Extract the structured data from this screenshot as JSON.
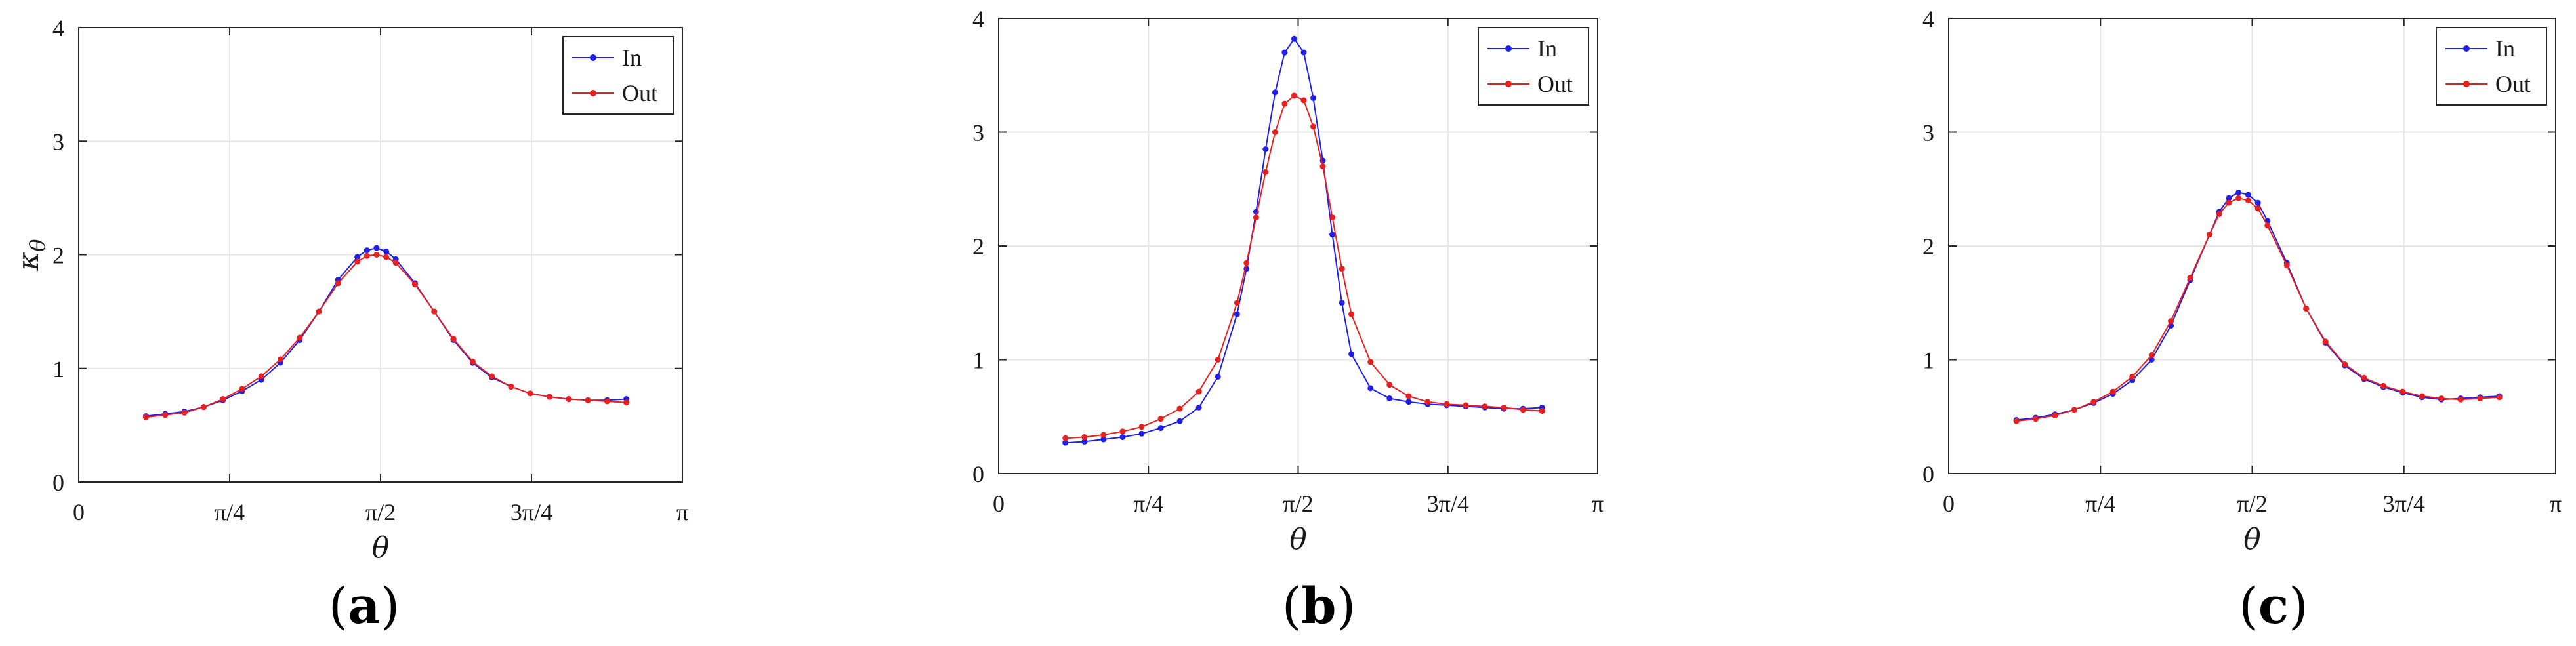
{
  "chart_data": [
    {
      "type": "line",
      "panel_label": "a",
      "xlabel": "θ",
      "ylabel": "κ",
      "ylabel_sub": "θ",
      "xlim": [
        0,
        3.14159
      ],
      "ylim": [
        0,
        4
      ],
      "xticks": [
        0,
        0.7854,
        1.5708,
        2.3562,
        3.14159
      ],
      "xtick_labels": [
        "0",
        "π/4",
        "π/2",
        "3π/4",
        "π"
      ],
      "yticks": [
        0,
        1,
        2,
        3,
        4
      ],
      "ytick_labels": [
        "0",
        "1",
        "2",
        "3",
        "4"
      ],
      "grid": true,
      "legend_position": "top-right",
      "series": [
        {
          "name": "In",
          "color": "#1f1fe6",
          "x": [
            0.35,
            0.45,
            0.55,
            0.65,
            0.75,
            0.85,
            0.95,
            1.05,
            1.15,
            1.25,
            1.35,
            1.45,
            1.5,
            1.55,
            1.6,
            1.65,
            1.75,
            1.85,
            1.95,
            2.05,
            2.15,
            2.25,
            2.35,
            2.45,
            2.55,
            2.65,
            2.75,
            2.85
          ],
          "y": [
            0.58,
            0.6,
            0.62,
            0.66,
            0.72,
            0.8,
            0.9,
            1.05,
            1.25,
            1.5,
            1.78,
            1.98,
            2.04,
            2.06,
            2.03,
            1.96,
            1.75,
            1.5,
            1.25,
            1.05,
            0.92,
            0.84,
            0.78,
            0.75,
            0.73,
            0.72,
            0.72,
            0.73
          ]
        },
        {
          "name": "Out",
          "color": "#e61f1f",
          "x": [
            0.35,
            0.45,
            0.55,
            0.65,
            0.75,
            0.85,
            0.95,
            1.05,
            1.15,
            1.25,
            1.35,
            1.45,
            1.5,
            1.55,
            1.6,
            1.65,
            1.75,
            1.85,
            1.95,
            2.05,
            2.15,
            2.25,
            2.35,
            2.45,
            2.55,
            2.65,
            2.75,
            2.85
          ],
          "y": [
            0.57,
            0.59,
            0.61,
            0.66,
            0.73,
            0.82,
            0.93,
            1.08,
            1.27,
            1.5,
            1.75,
            1.94,
            1.99,
            2.0,
            1.98,
            1.93,
            1.74,
            1.5,
            1.26,
            1.06,
            0.93,
            0.84,
            0.78,
            0.75,
            0.73,
            0.72,
            0.71,
            0.7
          ]
        }
      ]
    },
    {
      "type": "line",
      "panel_label": "b",
      "xlabel": "θ",
      "ylabel": "",
      "ylabel_sub": "",
      "xlim": [
        0,
        3.14159
      ],
      "ylim": [
        0,
        4
      ],
      "xticks": [
        0,
        0.7854,
        1.5708,
        2.3562,
        3.14159
      ],
      "xtick_labels": [
        "0",
        "π/4",
        "π/2",
        "3π/4",
        "π"
      ],
      "yticks": [
        0,
        1,
        2,
        3,
        4
      ],
      "ytick_labels": [
        "0",
        "1",
        "2",
        "3",
        "4"
      ],
      "grid": true,
      "legend_position": "top-right",
      "series": [
        {
          "name": "In",
          "color": "#1f1fe6",
          "x": [
            0.35,
            0.45,
            0.55,
            0.65,
            0.75,
            0.85,
            0.95,
            1.05,
            1.15,
            1.25,
            1.3,
            1.35,
            1.4,
            1.45,
            1.5,
            1.55,
            1.6,
            1.65,
            1.7,
            1.75,
            1.8,
            1.85,
            1.95,
            2.05,
            2.15,
            2.25,
            2.35,
            2.45,
            2.55,
            2.65,
            2.75,
            2.85
          ],
          "y": [
            0.27,
            0.28,
            0.3,
            0.32,
            0.35,
            0.4,
            0.46,
            0.58,
            0.85,
            1.4,
            1.8,
            2.3,
            2.85,
            3.35,
            3.7,
            3.82,
            3.7,
            3.3,
            2.75,
            2.1,
            1.5,
            1.05,
            0.75,
            0.66,
            0.63,
            0.61,
            0.6,
            0.59,
            0.58,
            0.57,
            0.57,
            0.58
          ]
        },
        {
          "name": "Out",
          "color": "#e61f1f",
          "x": [
            0.35,
            0.45,
            0.55,
            0.65,
            0.75,
            0.85,
            0.95,
            1.05,
            1.15,
            1.25,
            1.3,
            1.35,
            1.4,
            1.45,
            1.5,
            1.55,
            1.6,
            1.65,
            1.7,
            1.75,
            1.8,
            1.85,
            1.95,
            2.05,
            2.15,
            2.25,
            2.35,
            2.45,
            2.55,
            2.65,
            2.75,
            2.85
          ],
          "y": [
            0.31,
            0.32,
            0.34,
            0.37,
            0.41,
            0.48,
            0.57,
            0.72,
            1.0,
            1.5,
            1.85,
            2.25,
            2.65,
            3.0,
            3.25,
            3.32,
            3.28,
            3.05,
            2.7,
            2.25,
            1.8,
            1.4,
            0.98,
            0.78,
            0.68,
            0.63,
            0.61,
            0.6,
            0.59,
            0.58,
            0.56,
            0.55
          ]
        }
      ]
    },
    {
      "type": "line",
      "panel_label": "c",
      "xlabel": "θ",
      "ylabel": "",
      "ylabel_sub": "",
      "xlim": [
        0,
        3.14159
      ],
      "ylim": [
        0,
        4
      ],
      "xticks": [
        0,
        0.7854,
        1.5708,
        2.3562,
        3.14159
      ],
      "xtick_labels": [
        "0",
        "π/4",
        "π/2",
        "3π/4",
        "π"
      ],
      "yticks": [
        0,
        1,
        2,
        3,
        4
      ],
      "ytick_labels": [
        "0",
        "1",
        "2",
        "3",
        "4"
      ],
      "grid": true,
      "legend_position": "top-right",
      "series": [
        {
          "name": "In",
          "color": "#1f1fe6",
          "x": [
            0.35,
            0.45,
            0.55,
            0.65,
            0.75,
            0.85,
            0.95,
            1.05,
            1.15,
            1.25,
            1.35,
            1.4,
            1.45,
            1.5,
            1.55,
            1.6,
            1.65,
            1.75,
            1.85,
            1.95,
            2.05,
            2.15,
            2.25,
            2.35,
            2.45,
            2.55,
            2.65,
            2.75,
            2.85
          ],
          "y": [
            0.47,
            0.49,
            0.52,
            0.56,
            0.62,
            0.7,
            0.82,
            1.0,
            1.3,
            1.7,
            2.1,
            2.3,
            2.42,
            2.47,
            2.45,
            2.38,
            2.22,
            1.85,
            1.45,
            1.15,
            0.95,
            0.83,
            0.76,
            0.71,
            0.67,
            0.65,
            0.66,
            0.67,
            0.68
          ]
        },
        {
          "name": "Out",
          "color": "#e61f1f",
          "x": [
            0.35,
            0.45,
            0.55,
            0.65,
            0.75,
            0.85,
            0.95,
            1.05,
            1.15,
            1.25,
            1.35,
            1.4,
            1.45,
            1.5,
            1.55,
            1.6,
            1.65,
            1.75,
            1.85,
            1.95,
            2.05,
            2.15,
            2.25,
            2.35,
            2.45,
            2.55,
            2.65,
            2.75,
            2.85
          ],
          "y": [
            0.46,
            0.48,
            0.51,
            0.56,
            0.63,
            0.72,
            0.85,
            1.04,
            1.34,
            1.72,
            2.1,
            2.28,
            2.38,
            2.42,
            2.4,
            2.33,
            2.18,
            1.83,
            1.45,
            1.16,
            0.96,
            0.84,
            0.77,
            0.72,
            0.68,
            0.66,
            0.65,
            0.66,
            0.67
          ]
        }
      ]
    }
  ]
}
